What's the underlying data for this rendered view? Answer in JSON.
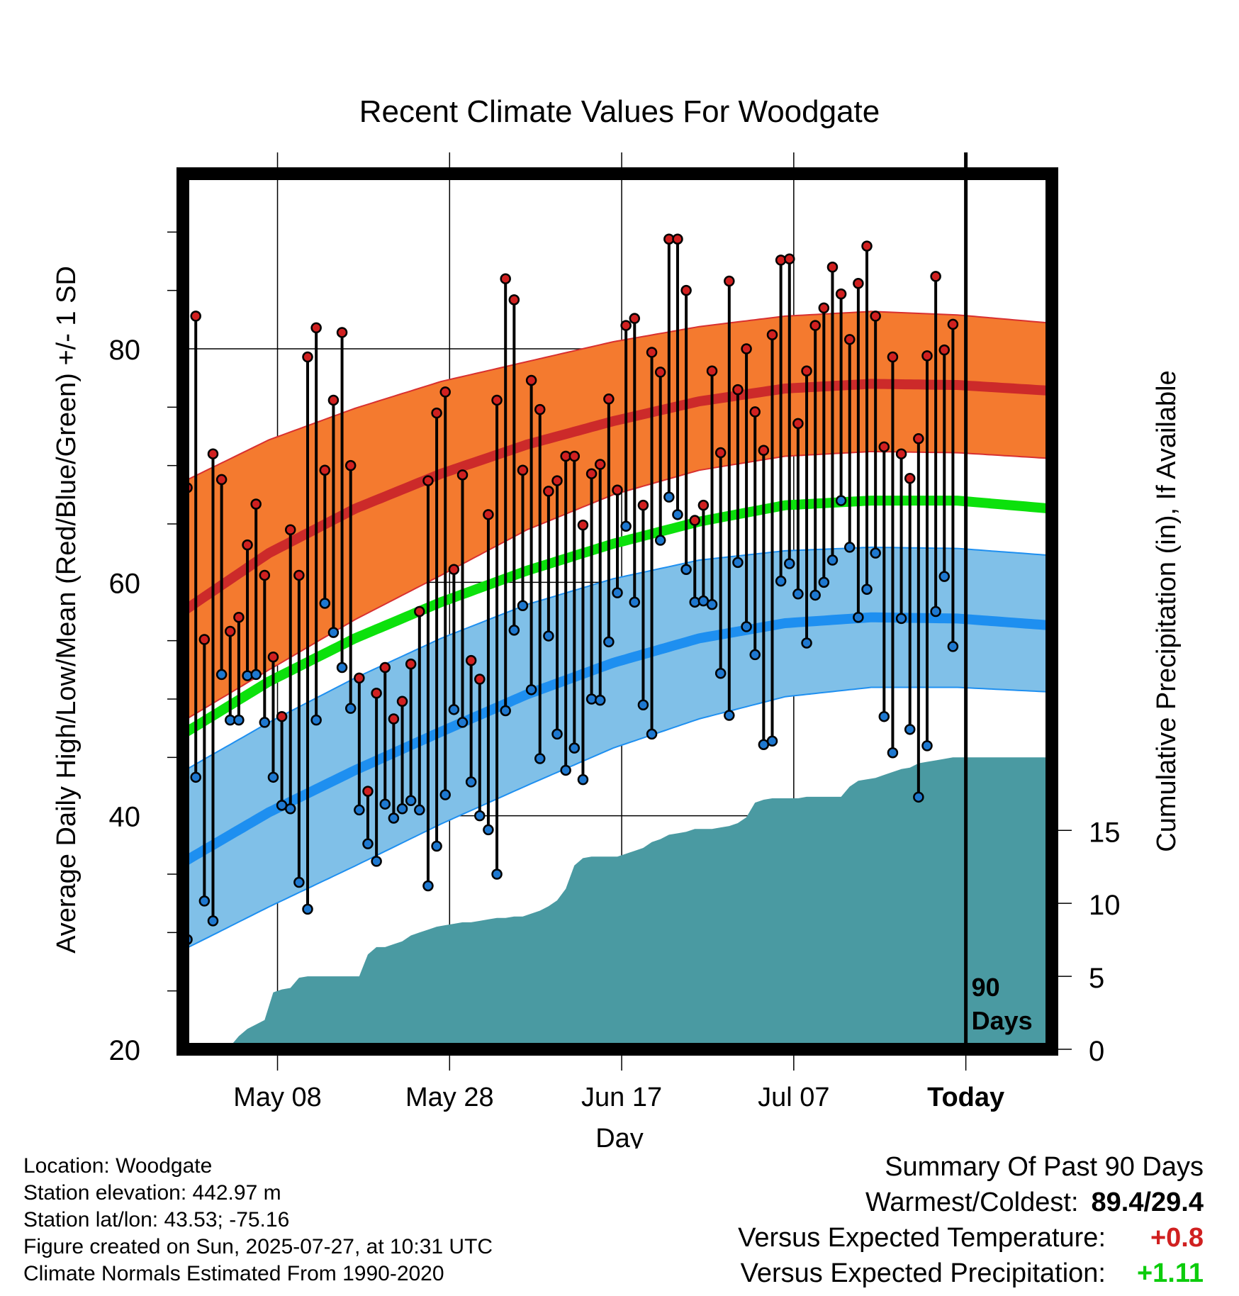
{
  "chart_data": {
    "type": "line",
    "title": "Recent Climate Values For Woodgate",
    "xlabel": "Day",
    "ylabel": "Average Daily High/Low/Mean (Red/Blue/Green) +/- 1 SD",
    "y2label": "Cumulative Precipitation (in), If Available",
    "ylim": [
      20,
      95
    ],
    "y2lim": [
      0,
      60
    ],
    "yticks": [
      20,
      40,
      60,
      80
    ],
    "y2ticks": [
      0,
      5,
      10,
      15
    ],
    "xticks": [
      "May 08",
      "May 28",
      "Jun 17",
      "Jul 07",
      "Today"
    ],
    "x_day_range": [
      0,
      101
    ],
    "xtick_days": [
      11,
      31,
      51,
      71,
      91
    ],
    "today_day": 91,
    "today_label_line1": "90",
    "today_label_line2": "Days",
    "grid": true,
    "colors": {
      "high_band": "#f47a2f",
      "high_mean": "#cc2a2a",
      "low_band": "#80c0e8",
      "low_mean": "#1e8ff0",
      "mean": "#0ce10c",
      "precip": "#4a9aa2",
      "high_point": "#d02020",
      "low_point": "#1e78d0"
    },
    "normal_high_mean": [
      57.5,
      62.5,
      66.3,
      69.3,
      71.8,
      73.8,
      75.5,
      76.6,
      77.0,
      76.9,
      76.4
    ],
    "normal_high_upper": [
      68.6,
      72.2,
      74.9,
      77.2,
      78.9,
      80.6,
      81.9,
      82.8,
      83.2,
      82.9,
      82.2
    ],
    "normal_high_lower": [
      48.1,
      52.5,
      56.8,
      60.6,
      64.5,
      67.5,
      69.6,
      70.8,
      71.2,
      71.1,
      70.6
    ],
    "normal_low_mean": [
      36.0,
      40.3,
      43.9,
      47.2,
      50.4,
      53.1,
      55.2,
      56.5,
      57.0,
      56.9,
      56.3
    ],
    "normal_low_upper": [
      43.8,
      48.0,
      51.8,
      55.2,
      58.1,
      60.3,
      61.9,
      62.7,
      63.0,
      62.9,
      62.3
    ],
    "normal_low_lower": [
      28.5,
      32.2,
      35.7,
      39.3,
      42.6,
      45.8,
      48.3,
      50.2,
      51.0,
      51.0,
      50.6
    ],
    "normal_mean": [
      47.0,
      51.5,
      55.2,
      58.3,
      61.0,
      63.3,
      65.2,
      66.6,
      67.0,
      67.0,
      66.3
    ],
    "normal_days": [
      0,
      10,
      20,
      30,
      40,
      50,
      60,
      70,
      80,
      90,
      101
    ],
    "highs": [
      68.1,
      82.8,
      55.1,
      71.0,
      68.8,
      55.8,
      57.0,
      63.2,
      66.7,
      60.6,
      53.6,
      48.5,
      64.5,
      60.6,
      79.3,
      81.8,
      69.6,
      75.6,
      81.4,
      70.0,
      51.8,
      42.1,
      50.5,
      52.7,
      48.3,
      49.8,
      53.0,
      57.5,
      68.7,
      74.5,
      76.3,
      61.1,
      69.2,
      53.3,
      51.7,
      65.8,
      75.6,
      86.0,
      84.2,
      69.6,
      77.3,
      74.8,
      67.8,
      68.7,
      70.8,
      70.8,
      64.9,
      69.3,
      70.1,
      75.7,
      67.9,
      82.0,
      82.6,
      66.6,
      79.7,
      78.0,
      89.4,
      89.4,
      85.0,
      65.3,
      66.6,
      78.1,
      71.1,
      85.8,
      76.5,
      80.0,
      74.6,
      71.3,
      81.2,
      87.6,
      87.7,
      73.6,
      78.1,
      82.0,
      83.5,
      87.0,
      84.7,
      80.8,
      85.6,
      88.8,
      82.8,
      71.6,
      79.3,
      71.0,
      68.9,
      72.3,
      79.4,
      86.2,
      79.9,
      82.1
    ],
    "lows": [
      29.4,
      43.3,
      32.7,
      31.0,
      52.1,
      48.2,
      48.2,
      52.0,
      52.1,
      48.0,
      43.3,
      40.9,
      40.6,
      34.3,
      32.0,
      48.2,
      58.2,
      55.7,
      52.7,
      49.2,
      40.5,
      37.6,
      36.1,
      41.0,
      39.8,
      40.6,
      41.3,
      40.5,
      34.0,
      37.4,
      41.8,
      49.1,
      48.0,
      42.9,
      40.0,
      38.8,
      35.0,
      49.0,
      55.9,
      58.0,
      50.8,
      44.9,
      55.4,
      47.0,
      43.9,
      45.8,
      43.1,
      50.0,
      49.9,
      54.9,
      59.1,
      64.8,
      58.3,
      49.5,
      47.0,
      63.6,
      67.3,
      65.8,
      61.1,
      58.3,
      58.4,
      58.1,
      52.2,
      48.6,
      61.7,
      56.2,
      53.8,
      46.1,
      46.4,
      60.1,
      61.6,
      59.0,
      54.8,
      58.9,
      60.0,
      61.9,
      67.0,
      63.0,
      57.0,
      59.4,
      62.5,
      48.5,
      45.4,
      56.9,
      47.4,
      41.6,
      46.0,
      57.5,
      60.5,
      54.5
    ],
    "precip_cumulative": [
      0,
      0,
      0,
      0,
      0,
      0.2,
      0.9,
      1.4,
      1.7,
      2.0,
      3.9,
      4.1,
      4.2,
      4.9,
      5.0,
      5.0,
      5.0,
      5.0,
      5.0,
      5.0,
      5.0,
      6.5,
      7.0,
      7.0,
      7.2,
      7.4,
      7.8,
      8.0,
      8.2,
      8.4,
      8.5,
      8.6,
      8.7,
      8.7,
      8.8,
      8.9,
      9.0,
      9.0,
      9.1,
      9.1,
      9.3,
      9.5,
      9.8,
      10.2,
      11.0,
      12.6,
      13.1,
      13.2,
      13.2,
      13.2,
      13.2,
      13.4,
      13.6,
      13.8,
      14.2,
      14.4,
      14.7,
      14.8,
      14.9,
      15.1,
      15.1,
      15.1,
      15.2,
      15.3,
      15.5,
      15.9,
      16.9,
      17.1,
      17.2,
      17.2,
      17.2,
      17.2,
      17.3,
      17.3,
      17.3,
      17.3,
      17.3,
      18.0,
      18.4,
      18.5,
      18.6,
      18.8,
      19.0,
      19.2,
      19.3,
      19.6,
      19.7,
      19.8,
      19.9,
      20.0,
      20.0,
      20.0
    ]
  },
  "footer": {
    "location": "Location: Woodgate",
    "elevation": "Station elevation: 442.97 m",
    "latlon": "Station lat/lon: 43.53; -75.16",
    "created": "Figure created on Sun, 2025-07-27, at 10:31 UTC",
    "normals": "Climate Normals Estimated From 1990-2020"
  },
  "summary": {
    "title": "Summary Of Past 90 Days",
    "warm_cold_label": "Warmest/Coldest:",
    "warm_cold_value": "89.4/29.4",
    "temp_label": "Versus Expected Temperature:",
    "temp_value": "+0.8",
    "temp_color": "#d02020",
    "precip_label": "Versus Expected Precipitation:",
    "precip_value": "+1.11",
    "precip_color": "#0ccc0c"
  }
}
